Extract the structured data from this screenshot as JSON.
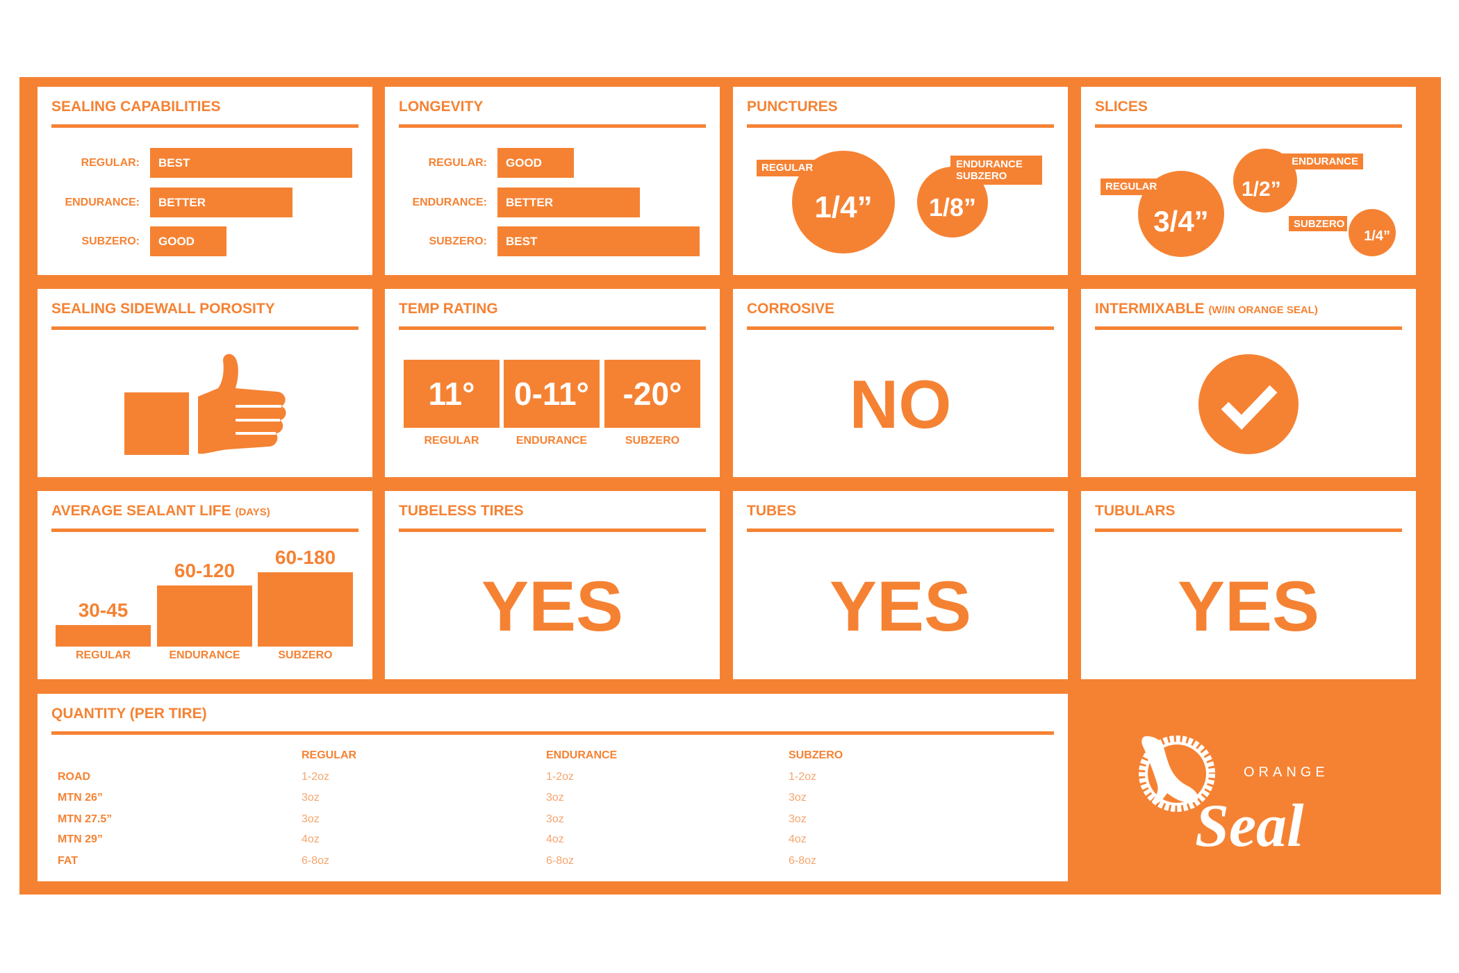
{
  "brand": {
    "name": "ORANGE Seal",
    "orange": "#F58233",
    "white": "#FFFFFF"
  },
  "sealing": {
    "title": "SEALING CAPABILITIES",
    "rows": [
      {
        "label": "REGULAR:",
        "value": "BEST"
      },
      {
        "label": "ENDURANCE:",
        "value": "BETTER"
      },
      {
        "label": "SUBZERO:",
        "value": "GOOD"
      }
    ]
  },
  "longevity": {
    "title": "LONGEVITY",
    "rows": [
      {
        "label": "REGULAR:",
        "value": "GOOD"
      },
      {
        "label": "ENDURANCE:",
        "value": "BETTER"
      },
      {
        "label": "SUBZERO:",
        "value": "BEST"
      }
    ]
  },
  "punctures": {
    "title": "PUNCTURES",
    "regular": {
      "label": "REGULAR",
      "value": "1/4”"
    },
    "endurance_subzero": {
      "label1": "ENDURANCE",
      "label2": "SUBZERO",
      "value": "1/8”"
    }
  },
  "slices": {
    "title": "SLICES",
    "regular": {
      "label": "REGULAR",
      "value": "3/4”"
    },
    "endurance": {
      "label": "ENDURANCE",
      "value": "1/2”"
    },
    "subzero": {
      "label": "SUBZERO",
      "value": "1/4”"
    }
  },
  "porosity": {
    "title": "SEALING SIDEWALL POROSITY",
    "icon": "thumbs-up-icon"
  },
  "temp": {
    "title": "TEMP RATING",
    "items": [
      {
        "value": "11°",
        "label": "REGULAR"
      },
      {
        "value": "0-11°",
        "label": "ENDURANCE"
      },
      {
        "value": "-20°",
        "label": "SUBZERO"
      }
    ]
  },
  "corrosive": {
    "title": "CORROSIVE",
    "value": "NO"
  },
  "intermixable": {
    "title": "INTERMIXABLE",
    "title_note": "(W/IN ORANGE SEAL)",
    "icon": "checkmark-circle-icon"
  },
  "life": {
    "title": "AVERAGE SEALANT LIFE",
    "title_note": "(DAYS)",
    "items": [
      {
        "value": "30-45",
        "label": "REGULAR"
      },
      {
        "value": "60-120",
        "label": "ENDURANCE"
      },
      {
        "value": "60-180",
        "label": "SUBZERO"
      }
    ]
  },
  "tubeless": {
    "title": "TUBELESS TIRES",
    "value": "YES"
  },
  "tubes": {
    "title": "TUBES",
    "value": "YES"
  },
  "tubulars": {
    "title": "TUBULARS",
    "value": "YES"
  },
  "quantity": {
    "title": "QUANTITY (PER TIRE)",
    "columns": [
      "REGULAR",
      "ENDURANCE",
      "SUBZERO"
    ],
    "rows": [
      {
        "label": "ROAD",
        "values": [
          "1-2oz",
          "1-2oz",
          "1-2oz"
        ]
      },
      {
        "label": "MTN 26”",
        "values": [
          "3oz",
          "3oz",
          "3oz"
        ]
      },
      {
        "label": "MTN 27.5”",
        "values": [
          "3oz",
          "3oz",
          "3oz"
        ]
      },
      {
        "label": "MTN 29”",
        "values": [
          "4oz",
          "4oz",
          "4oz"
        ]
      },
      {
        "label": "FAT",
        "values": [
          "6-8oz",
          "6-8oz",
          "6-8oz"
        ]
      }
    ]
  }
}
